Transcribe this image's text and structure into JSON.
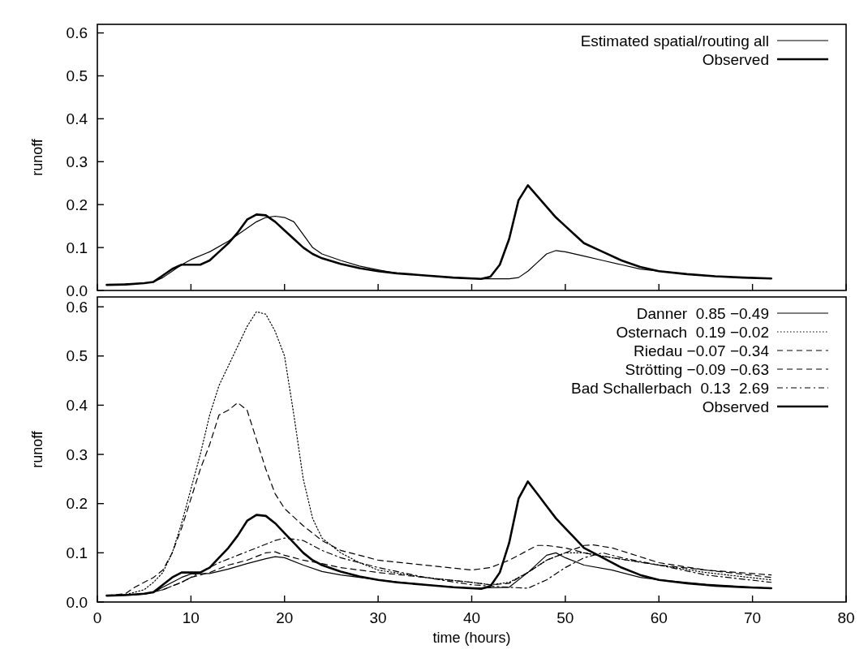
{
  "chart_data": [
    {
      "type": "line",
      "ylabel": "runoff",
      "xlim": [
        0,
        80
      ],
      "xticks": [
        0,
        10,
        20,
        30,
        40,
        50,
        60,
        70,
        80
      ],
      "ylim": [
        0,
        0.62
      ],
      "yticks": [
        {
          "value": 0,
          "label": "0.0"
        },
        0.1,
        0.2,
        0.3,
        0.4,
        0.5,
        0.6
      ],
      "tick_labels": "y",
      "legend": "top right",
      "grid": false,
      "series": [
        {
          "name": "Estimated spatial/routing all",
          "color": "#000000",
          "line_style": "solid",
          "x": [
            1,
            5,
            6,
            7,
            8,
            9,
            10,
            12,
            14,
            16,
            17,
            18,
            19,
            20,
            21,
            22,
            23,
            24,
            26,
            28,
            30,
            32,
            35,
            38,
            41,
            44,
            45,
            46,
            47,
            48,
            49,
            50,
            52,
            54,
            56,
            58,
            60,
            63,
            66,
            69,
            72
          ],
          "values": [
            0.013,
            0.017,
            0.02,
            0.03,
            0.045,
            0.06,
            0.072,
            0.09,
            0.115,
            0.145,
            0.16,
            0.17,
            0.173,
            0.17,
            0.16,
            0.13,
            0.1,
            0.085,
            0.07,
            0.057,
            0.048,
            0.04,
            0.035,
            0.03,
            0.027,
            0.027,
            0.03,
            0.045,
            0.065,
            0.085,
            0.093,
            0.09,
            0.08,
            0.07,
            0.06,
            0.05,
            0.045,
            0.038,
            0.033,
            0.03,
            0.028
          ]
        },
        {
          "name": "Observed",
          "color": "#000000",
          "line_style": "solid",
          "x": [
            1,
            3,
            5,
            6,
            7,
            8,
            9,
            10,
            11,
            12,
            13,
            14,
            15,
            16,
            17,
            18,
            19,
            20,
            21,
            22,
            23,
            24,
            26,
            28,
            30,
            32,
            35,
            38,
            41,
            42,
            43,
            44,
            45,
            46,
            47,
            48,
            49,
            50,
            51,
            52,
            54,
            56,
            58,
            60,
            63,
            66,
            69,
            72
          ],
          "values": [
            0.013,
            0.014,
            0.017,
            0.02,
            0.035,
            0.05,
            0.06,
            0.06,
            0.06,
            0.07,
            0.09,
            0.11,
            0.135,
            0.165,
            0.177,
            0.175,
            0.16,
            0.14,
            0.12,
            0.1,
            0.085,
            0.075,
            0.062,
            0.052,
            0.045,
            0.04,
            0.035,
            0.03,
            0.027,
            0.032,
            0.06,
            0.12,
            0.21,
            0.245,
            0.22,
            0.195,
            0.17,
            0.15,
            0.13,
            0.11,
            0.09,
            0.07,
            0.055,
            0.045,
            0.038,
            0.033,
            0.03,
            0.028
          ]
        }
      ]
    },
    {
      "type": "line",
      "xlabel": "time (hours)",
      "ylabel": "runoff",
      "xlim": [
        0,
        80
      ],
      "xticks": [
        0,
        10,
        20,
        30,
        40,
        50,
        60,
        70,
        80
      ],
      "ylim": [
        0,
        0.62
      ],
      "yticks": [
        {
          "value": 0,
          "label": "0.0"
        },
        0.1,
        0.2,
        0.3,
        0.4,
        0.5,
        0.6
      ],
      "legend": "top right",
      "grid": false,
      "series": [
        {
          "name": "Danner  0.85 −0.49",
          "color": "#000000",
          "line_style": "solid",
          "x": [
            1,
            5,
            6,
            7,
            8,
            9,
            10,
            12,
            14,
            16,
            18,
            19,
            20,
            22,
            24,
            26,
            30,
            35,
            40,
            44,
            46,
            48,
            49,
            50,
            52,
            55,
            58,
            60,
            65,
            72
          ],
          "values": [
            0.013,
            0.016,
            0.02,
            0.03,
            0.04,
            0.05,
            0.057,
            0.058,
            0.067,
            0.078,
            0.088,
            0.092,
            0.09,
            0.075,
            0.062,
            0.055,
            0.045,
            0.035,
            0.028,
            0.03,
            0.06,
            0.095,
            0.1,
            0.09,
            0.075,
            0.065,
            0.05,
            0.045,
            0.036,
            0.028
          ]
        },
        {
          "name": "Osternach  0.19 −0.02",
          "color": "#000000",
          "line_style": "dotted",
          "x": [
            1,
            3,
            5,
            6,
            7,
            8,
            9,
            10,
            11,
            12,
            13,
            14,
            15,
            16,
            17,
            18,
            19,
            20,
            21,
            22,
            23,
            24,
            26,
            28,
            30,
            35,
            40,
            42,
            44,
            46,
            48,
            50,
            52,
            55,
            60,
            65,
            72
          ],
          "values": [
            0.013,
            0.015,
            0.025,
            0.04,
            0.06,
            0.1,
            0.16,
            0.23,
            0.3,
            0.38,
            0.44,
            0.48,
            0.52,
            0.56,
            0.59,
            0.585,
            0.55,
            0.5,
            0.38,
            0.25,
            0.17,
            0.13,
            0.1,
            0.08,
            0.065,
            0.05,
            0.04,
            0.035,
            0.04,
            0.06,
            0.085,
            0.1,
            0.1,
            0.09,
            0.075,
            0.06,
            0.045
          ]
        },
        {
          "name": "Riedau −0.07 −0.34",
          "color": "#000000",
          "line_style": "dashed",
          "x": [
            1,
            3,
            4,
            6,
            7,
            8,
            9,
            10,
            11,
            12,
            13,
            14,
            15,
            16,
            17,
            18,
            19,
            20,
            22,
            24,
            26,
            28,
            30,
            35,
            40,
            42,
            44,
            46,
            47,
            48,
            50,
            52,
            55,
            60,
            65,
            72
          ],
          "values": [
            0.013,
            0.017,
            0.03,
            0.05,
            0.065,
            0.1,
            0.15,
            0.21,
            0.27,
            0.32,
            0.38,
            0.39,
            0.405,
            0.39,
            0.33,
            0.27,
            0.22,
            0.19,
            0.155,
            0.125,
            0.105,
            0.095,
            0.085,
            0.075,
            0.065,
            0.07,
            0.085,
            0.105,
            0.115,
            0.115,
            0.11,
            0.1,
            0.09,
            0.075,
            0.065,
            0.055
          ]
        },
        {
          "name": "Strötting −0.09 −0.63",
          "color": "#000000",
          "line_style": "dashed",
          "x": [
            1,
            5,
            7,
            9,
            10,
            12,
            14,
            16,
            18,
            19,
            20,
            22,
            24,
            26,
            30,
            35,
            40,
            42,
            44,
            46,
            48,
            50,
            52,
            53,
            55,
            60,
            65,
            72
          ],
          "values": [
            0.013,
            0.016,
            0.025,
            0.04,
            0.05,
            0.06,
            0.075,
            0.085,
            0.1,
            0.102,
            0.095,
            0.085,
            0.078,
            0.07,
            0.06,
            0.05,
            0.04,
            0.035,
            0.038,
            0.06,
            0.085,
            0.1,
            0.115,
            0.116,
            0.11,
            0.08,
            0.065,
            0.05
          ]
        },
        {
          "name": "Bad Schallerbach  0.13  2.69",
          "color": "#000000",
          "line_style": "dashdot",
          "x": [
            1,
            5,
            7,
            9,
            11,
            13,
            15,
            17,
            19,
            20,
            22,
            24,
            26,
            30,
            35,
            40,
            44,
            46,
            48,
            50,
            52,
            54,
            56,
            60,
            65,
            72
          ],
          "values": [
            0.013,
            0.016,
            0.025,
            0.04,
            0.06,
            0.08,
            0.095,
            0.11,
            0.125,
            0.13,
            0.125,
            0.105,
            0.09,
            0.07,
            0.05,
            0.035,
            0.03,
            0.028,
            0.045,
            0.07,
            0.09,
            0.1,
            0.09,
            0.075,
            0.055,
            0.04
          ]
        },
        {
          "name": "Observed",
          "color": "#000000",
          "line_style": "solid",
          "x": [
            1,
            3,
            5,
            6,
            7,
            8,
            9,
            10,
            11,
            12,
            13,
            14,
            15,
            16,
            17,
            18,
            19,
            20,
            21,
            22,
            23,
            24,
            26,
            28,
            30,
            32,
            35,
            38,
            41,
            42,
            43,
            44,
            45,
            46,
            47,
            48,
            49,
            50,
            51,
            52,
            54,
            56,
            58,
            60,
            63,
            66,
            69,
            72
          ],
          "values": [
            0.013,
            0.014,
            0.017,
            0.02,
            0.035,
            0.05,
            0.06,
            0.06,
            0.06,
            0.07,
            0.09,
            0.11,
            0.135,
            0.165,
            0.177,
            0.175,
            0.16,
            0.14,
            0.12,
            0.1,
            0.085,
            0.075,
            0.062,
            0.052,
            0.045,
            0.04,
            0.035,
            0.03,
            0.027,
            0.032,
            0.06,
            0.12,
            0.21,
            0.245,
            0.22,
            0.195,
            0.17,
            0.15,
            0.13,
            0.11,
            0.09,
            0.07,
            0.055,
            0.045,
            0.038,
            0.033,
            0.03,
            0.028
          ]
        }
      ]
    }
  ]
}
